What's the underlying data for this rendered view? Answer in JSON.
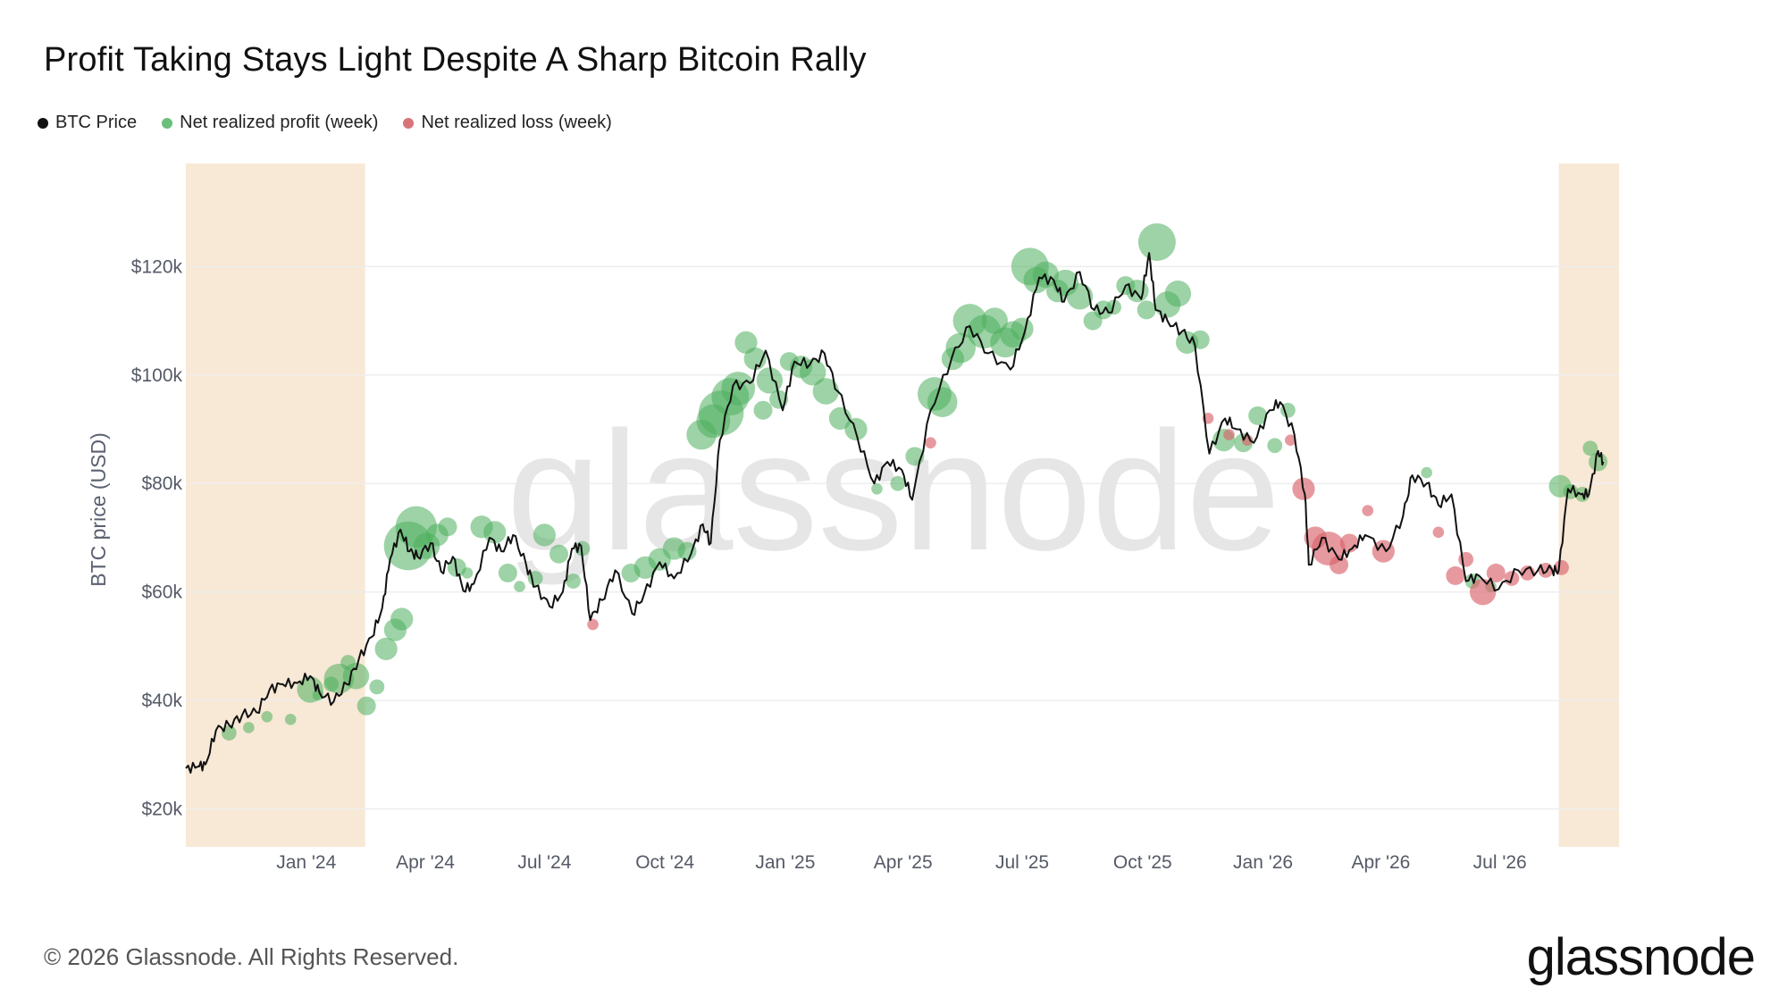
{
  "title": "Profit Taking Stays Light Despite A Sharp Bitcoin Rally",
  "legend": [
    {
      "label": "BTC Price",
      "color": "#111111"
    },
    {
      "label": "Net realized profit (week)",
      "color": "#6cbf7a"
    },
    {
      "label": "Net realized loss (week)",
      "color": "#d9737a"
    }
  ],
  "footer": "© 2026 Glassnode. All Rights Reserved.",
  "logo": "glassnode",
  "watermark": "glassnode",
  "colors": {
    "price": "#111111",
    "profit": "#4caf5c",
    "loss": "#d9646c",
    "shade": "#f8e8d6",
    "grid": "#eeeeee"
  },
  "chart_data": {
    "type": "line",
    "title": "Profit Taking Stays Light Despite A Sharp Bitcoin Rally",
    "xlabel": "",
    "ylabel": "BTC price (USD)",
    "xlim": [
      "2023-10-01",
      "2026-09-30"
    ],
    "ylim": [
      13000,
      139000
    ],
    "yticks": [
      20000,
      40000,
      60000,
      80000,
      100000,
      120000
    ],
    "ytick_labels": [
      "$20k",
      "$40k",
      "$60k",
      "$80k",
      "$100k",
      "$120k"
    ],
    "xticks": [
      "2024-01-01",
      "2024-04-01",
      "2024-07-01",
      "2024-10-01",
      "2025-01-01",
      "2025-04-01",
      "2025-07-01",
      "2025-10-01",
      "2026-01-01",
      "2026-04-01",
      "2026-07-01"
    ],
    "xtick_labels": [
      "Jan '24",
      "Apr '24",
      "Jul '24",
      "Oct '24",
      "Jan '25",
      "Apr '25",
      "Jul '25",
      "Oct '25",
      "Jan '26",
      "Apr '26",
      "Jul '26"
    ],
    "shaded_ranges": [
      [
        "2023-10-01",
        "2024-02-15"
      ],
      [
        "2026-08-15",
        "2026-09-30"
      ]
    ],
    "grid": true,
    "series": [
      {
        "name": "BTC Price",
        "x": [
          "2023-10-01",
          "2023-10-10",
          "2023-10-16",
          "2023-10-24",
          "2023-11-03",
          "2023-11-13",
          "2023-11-24",
          "2023-12-04",
          "2023-12-14",
          "2023-12-25",
          "2024-01-04",
          "2024-01-11",
          "2024-01-22",
          "2024-02-01",
          "2024-02-10",
          "2024-02-20",
          "2024-02-28",
          "2024-03-05",
          "2024-03-13",
          "2024-03-20",
          "2024-03-26",
          "2024-04-05",
          "2024-04-13",
          "2024-04-22",
          "2024-04-30",
          "2024-05-08",
          "2024-05-20",
          "2024-05-29",
          "2024-06-07",
          "2024-06-17",
          "2024-06-24",
          "2024-07-05",
          "2024-07-15",
          "2024-07-22",
          "2024-07-29",
          "2024-08-05",
          "2024-08-14",
          "2024-08-24",
          "2024-09-06",
          "2024-09-15",
          "2024-09-27",
          "2024-10-08",
          "2024-10-21",
          "2024-10-30",
          "2024-11-05",
          "2024-11-12",
          "2024-11-22",
          "2024-12-05",
          "2024-12-17",
          "2024-12-30",
          "2025-01-08",
          "2025-01-20",
          "2025-01-31",
          "2025-02-10",
          "2025-02-25",
          "2025-03-10",
          "2025-03-20",
          "2025-03-31",
          "2025-04-08",
          "2025-04-22",
          "2025-05-08",
          "2025-05-22",
          "2025-06-05",
          "2025-06-22",
          "2025-07-03",
          "2025-07-14",
          "2025-07-25",
          "2025-08-02",
          "2025-08-14",
          "2025-08-25",
          "2025-09-05",
          "2025-09-18",
          "2025-09-30",
          "2025-10-06",
          "2025-10-11",
          "2025-10-20",
          "2025-10-31",
          "2025-11-10",
          "2025-11-21",
          "2025-12-03",
          "2025-12-12",
          "2025-12-25",
          "2026-01-06",
          "2026-01-14",
          "2026-01-25",
          "2026-02-02",
          "2026-02-05",
          "2026-02-15",
          "2026-02-28",
          "2026-03-10",
          "2026-03-20",
          "2026-04-05",
          "2026-04-18",
          "2026-04-25",
          "2026-05-06",
          "2026-05-15",
          "2026-05-25",
          "2026-06-05",
          "2026-06-15",
          "2026-06-30",
          "2026-07-15",
          "2026-07-30",
          "2026-08-10",
          "2026-08-15",
          "2026-08-22",
          "2026-09-01",
          "2026-09-07",
          "2026-09-14",
          "2026-09-18"
        ],
        "values": [
          27500,
          27800,
          28200,
          34500,
          35500,
          37300,
          37800,
          42000,
          43000,
          43200,
          44500,
          41500,
          39800,
          43000,
          47500,
          51700,
          57000,
          66000,
          71500,
          67500,
          66500,
          69000,
          63800,
          66500,
          60200,
          61500,
          70000,
          67500,
          70500,
          65000,
          61000,
          57300,
          60000,
          68000,
          68500,
          54800,
          58500,
          64000,
          56000,
          59500,
          65500,
          62500,
          67000,
          72500,
          69000,
          88000,
          98000,
          98500,
          104500,
          93500,
          102500,
          102000,
          104000,
          97000,
          88500,
          80000,
          84000,
          82500,
          77000,
          93500,
          103000,
          109000,
          104000,
          101000,
          108000,
          118000,
          117500,
          113500,
          119000,
          112000,
          111500,
          116500,
          114000,
          122500,
          112000,
          110000,
          108000,
          105500,
          85500,
          92000,
          90000,
          87500,
          93500,
          95000,
          89000,
          78000,
          65000,
          70000,
          66000,
          68000,
          70500,
          67500,
          74000,
          81500,
          80000,
          76000,
          78000,
          62000,
          63000,
          60500,
          64000,
          64000,
          64000,
          64000,
          79000,
          78000,
          78000,
          86000,
          84000
        ]
      },
      {
        "name": "Net realized profit (week)",
        "x": [
          "2023-11-03",
          "2023-11-18",
          "2023-12-02",
          "2023-12-20",
          "2024-01-04",
          "2024-01-10",
          "2024-01-20",
          "2024-01-26",
          "2024-02-02",
          "2024-02-08",
          "2024-02-16",
          "2024-02-24",
          "2024-03-02",
          "2024-03-09",
          "2024-03-14",
          "2024-03-19",
          "2024-03-25",
          "2024-04-02",
          "2024-04-10",
          "2024-04-18",
          "2024-04-25",
          "2024-05-03",
          "2024-05-14",
          "2024-05-24",
          "2024-06-03",
          "2024-06-12",
          "2024-06-24",
          "2024-07-01",
          "2024-07-12",
          "2024-07-23",
          "2024-07-30",
          "2024-09-05",
          "2024-09-16",
          "2024-09-27",
          "2024-10-08",
          "2024-10-18",
          "2024-10-29",
          "2024-11-07",
          "2024-11-13",
          "2024-11-20",
          "2024-11-26",
          "2024-12-02",
          "2024-12-09",
          "2024-12-15",
          "2024-12-20",
          "2024-12-27",
          "2025-01-04",
          "2025-01-13",
          "2025-01-22",
          "2025-02-01",
          "2025-02-12",
          "2025-02-24",
          "2025-03-12",
          "2025-03-28",
          "2025-04-10",
          "2025-04-25",
          "2025-05-01",
          "2025-05-09",
          "2025-05-15",
          "2025-05-22",
          "2025-06-02",
          "2025-06-10",
          "2025-06-18",
          "2025-06-24",
          "2025-07-01",
          "2025-07-07",
          "2025-07-12",
          "2025-07-19",
          "2025-07-28",
          "2025-08-03",
          "2025-08-14",
          "2025-08-24",
          "2025-09-01",
          "2025-09-09",
          "2025-09-18",
          "2025-09-27",
          "2025-10-04",
          "2025-10-12",
          "2025-10-20",
          "2025-10-28",
          "2025-11-04",
          "2025-11-14",
          "2025-12-02",
          "2025-12-17",
          "2025-12-28",
          "2026-01-10",
          "2026-01-20",
          "2026-05-06",
          "2026-06-10",
          "2026-06-24",
          "2026-08-16",
          "2026-08-24",
          "2026-09-02",
          "2026-09-08",
          "2026-09-14"
        ],
        "values": [
          34000,
          35000,
          37000,
          36500,
          42000,
          41000,
          43000,
          44000,
          47000,
          44500,
          39000,
          42500,
          49500,
          53000,
          55000,
          68500,
          72000,
          68500,
          70500,
          72000,
          64500,
          63500,
          72000,
          71000,
          63500,
          61000,
          62500,
          70500,
          67000,
          62000,
          68000,
          63500,
          64500,
          66000,
          68000,
          67500,
          89000,
          91500,
          93000,
          96000,
          97500,
          106000,
          103000,
          93500,
          99000,
          95500,
          102500,
          101500,
          100500,
          97000,
          92000,
          90000,
          79000,
          80000,
          85000,
          96500,
          95000,
          103000,
          105000,
          110000,
          108000,
          110000,
          106000,
          107500,
          108500,
          120000,
          117500,
          118500,
          115500,
          117000,
          114500,
          110000,
          112000,
          112500,
          116500,
          115500,
          112000,
          124500,
          113000,
          115000,
          106000,
          106500,
          88000,
          87500,
          92500,
          87000,
          93500,
          82000,
          62000,
          61000,
          79500,
          78500,
          78000,
          86500,
          84000
        ]
      },
      {
        "name": "Net realized loss (week)",
        "x": [
          "2024-08-07",
          "2025-04-22",
          "2025-11-20",
          "2025-12-06",
          "2025-12-20",
          "2026-01-22",
          "2026-02-01",
          "2026-02-10",
          "2026-02-20",
          "2026-02-28",
          "2026-03-08",
          "2026-03-22",
          "2026-04-03",
          "2026-05-15",
          "2026-05-28",
          "2026-06-05",
          "2026-06-18",
          "2026-06-28",
          "2026-07-10",
          "2026-07-22",
          "2026-08-05",
          "2026-08-17"
        ],
        "values": [
          54000,
          87500,
          92000,
          89000,
          88000,
          88000,
          79000,
          70000,
          68000,
          65000,
          69000,
          75000,
          67500,
          71000,
          63000,
          66000,
          60000,
          63500,
          62500,
          63500,
          64000,
          64500
        ]
      }
    ],
    "bubble_sizes_profit": [
      4,
      3,
      3,
      3,
      7,
      3,
      4,
      8,
      4,
      7,
      5,
      4,
      6,
      6,
      6,
      13,
      11,
      7,
      6,
      5,
      5,
      3,
      6,
      6,
      5,
      3,
      4,
      6,
      5,
      4,
      4,
      5,
      6,
      6,
      6,
      5,
      8,
      9,
      12,
      10,
      9,
      6,
      6,
      5,
      7,
      5,
      5,
      6,
      7,
      7,
      6,
      6,
      3,
      4,
      5,
      9,
      8,
      6,
      8,
      9,
      9,
      7,
      8,
      7,
      6,
      10,
      7,
      7,
      6,
      7,
      7,
      5,
      5,
      4,
      5,
      6,
      5,
      10,
      7,
      7,
      6,
      5,
      6,
      5,
      5,
      4,
      4,
      3,
      4,
      3,
      6,
      4,
      4,
      4,
      5
    ],
    "bubble_sizes_loss": [
      3,
      3,
      3,
      3,
      3,
      3,
      6,
      6,
      9,
      5,
      5,
      3,
      6,
      3,
      5,
      4,
      7,
      5,
      4,
      4,
      4,
      4
    ]
  }
}
